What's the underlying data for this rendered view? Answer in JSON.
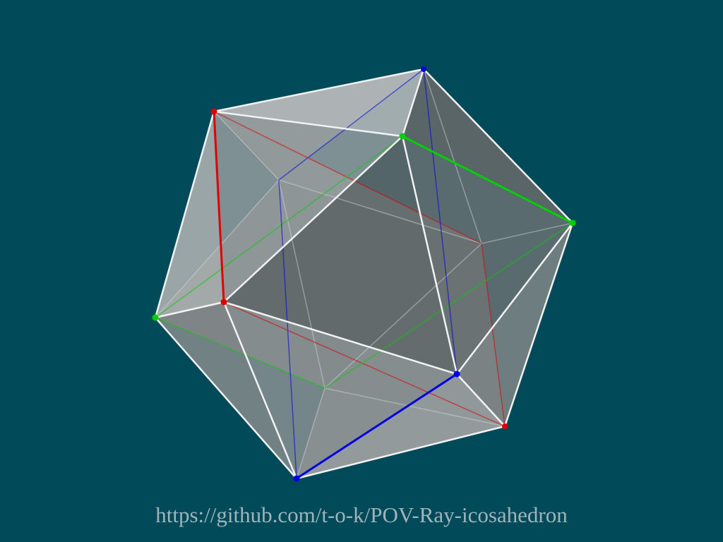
{
  "caption": "https://github.com/t-o-k/POV-Ray-icosahedron",
  "colors": {
    "background": "#004a5a",
    "face": "#c8c8c8",
    "edge": "#f2f2f2",
    "rectangle_red": "#e00000",
    "rectangle_green": "#00d000",
    "rectangle_blue": "#0000e0",
    "caption": "#a0b4ba"
  },
  "icons": {
    "scene": "icosahedron-render"
  }
}
